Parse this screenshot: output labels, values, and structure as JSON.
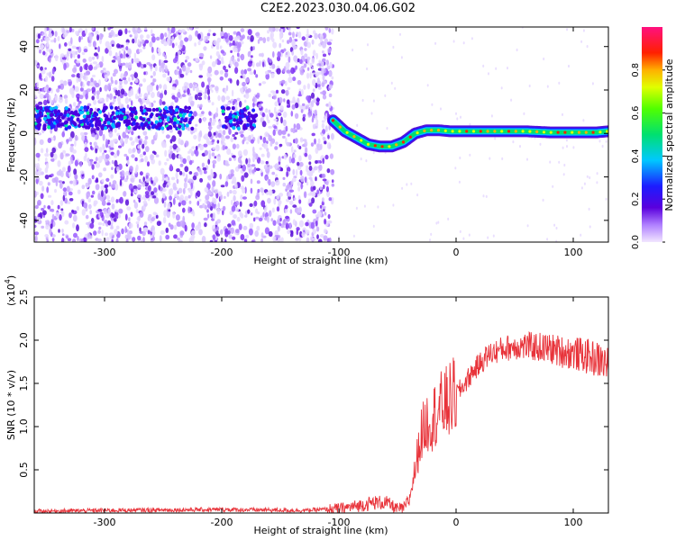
{
  "title": "C2E2.2023.030.04.06.G02",
  "chart_data": [
    {
      "type": "heatmap",
      "xlabel": "Height of straight line (km)",
      "ylabel": "Frequency (Hz)",
      "xlim": [
        -360,
        130
      ],
      "ylim": [
        -50,
        49
      ],
      "xticks": [
        -300,
        -200,
        -100,
        0,
        100
      ],
      "yticks": [
        -40,
        -20,
        0,
        20,
        40
      ],
      "colorbar": {
        "label": "Normalized spectral amplitude",
        "range": [
          0,
          1
        ],
        "ticks": [
          0.0,
          0.2,
          0.4,
          0.6,
          0.8
        ],
        "colormap": "rainbow (white-lavender, purple, blue, cyan, green, yellow, orange, red, pink)"
      },
      "ridge": {
        "x": [
          -105,
          -95,
          -85,
          -75,
          -65,
          -55,
          -45,
          -35,
          -25,
          -15,
          -5,
          0,
          20,
          40,
          60,
          80,
          100,
          120,
          130
        ],
        "y": [
          6,
          1,
          -2,
          -5,
          -6,
          -6,
          -4,
          0,
          1.5,
          1.5,
          1,
          1,
          1,
          1,
          1,
          0.5,
          0.5,
          0.5,
          1
        ]
      },
      "band_segments_x": [
        [
          -360,
          -225
        ],
        [
          -200,
          -170
        ]
      ],
      "band_frequency_hz": 7
    },
    {
      "type": "line",
      "xlabel": "Height of straight line (km)",
      "ylabel": "SNR (10 * v/v)",
      "yscale_label": "(x10",
      "yscale_exponent": "4",
      "xlim": [
        -360,
        130
      ],
      "ylim": [
        0,
        2.5
      ],
      "xticks": [
        -300,
        -200,
        -100,
        0,
        100
      ],
      "yticks": [
        0.5,
        1.0,
        1.5,
        2.0,
        2.5
      ],
      "series": [
        {
          "color": "#e8333a",
          "x": [
            -360,
            -300,
            -200,
            -130,
            -100,
            -85,
            -70,
            -60,
            -50,
            -45,
            -40,
            -35,
            -30,
            -25,
            -20,
            -15,
            -10,
            -5,
            0,
            5,
            10,
            15,
            20,
            25,
            30,
            40,
            50,
            60,
            70,
            80,
            90,
            100,
            110,
            120,
            130
          ],
          "y": [
            0.02,
            0.03,
            0.04,
            0.03,
            0.05,
            0.08,
            0.12,
            0.12,
            0.05,
            0.05,
            0.15,
            0.5,
            0.9,
            1.05,
            1.1,
            1.2,
            1.25,
            1.3,
            1.38,
            1.45,
            1.55,
            1.65,
            1.72,
            1.8,
            1.85,
            1.9,
            1.93,
            1.93,
            1.92,
            1.9,
            1.87,
            1.85,
            1.82,
            1.78,
            1.72
          ]
        }
      ]
    }
  ]
}
